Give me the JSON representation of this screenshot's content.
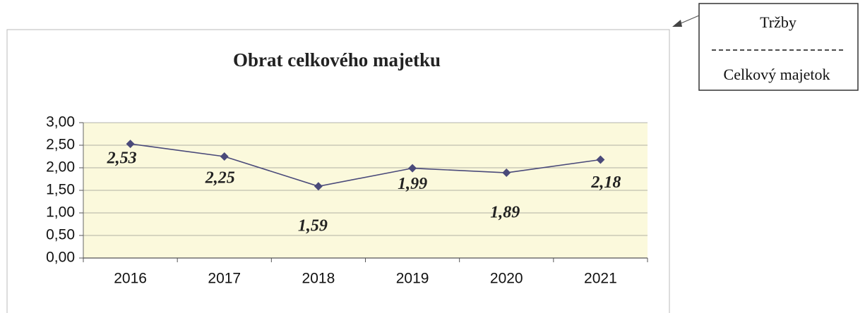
{
  "chart_data": {
    "type": "line",
    "title": "Obrat celkového majetku",
    "categories": [
      "2016",
      "2017",
      "2018",
      "2019",
      "2020",
      "2021"
    ],
    "values": [
      2.53,
      2.25,
      1.59,
      1.99,
      1.89,
      2.18
    ],
    "value_labels": [
      "2,53",
      "2,25",
      "1,59",
      "1,99",
      "1,89",
      "2,18"
    ],
    "color": "#4a4a7a",
    "ylim": [
      0,
      3
    ],
    "yticks": [
      {
        "value": 0,
        "label": "0,00"
      },
      {
        "value": 0.5,
        "label": "0,50"
      },
      {
        "value": 1,
        "label": "1,00"
      },
      {
        "value": 1.5,
        "label": "1,50"
      },
      {
        "value": 2,
        "label": "2,00"
      },
      {
        "value": 2.5,
        "label": "2,50"
      },
      {
        "value": 3,
        "label": "3,00"
      }
    ],
    "grid": true,
    "annotation": {
      "numerator": "Tržby",
      "denominator": "Celkový majetok"
    }
  }
}
